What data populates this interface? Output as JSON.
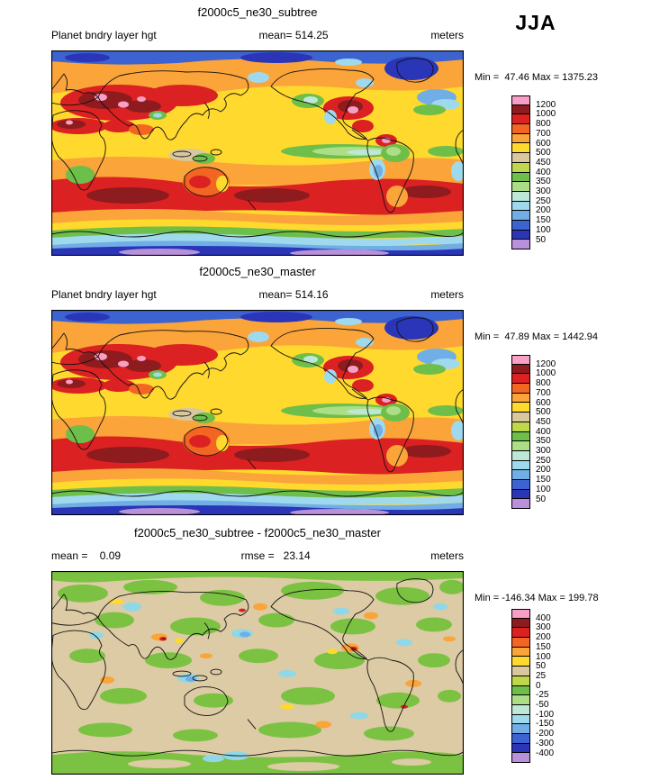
{
  "season": "JJA",
  "panels": [
    {
      "title": "f2000c5_ne30_subtree",
      "left_label": "Planet bndry layer hgt",
      "center_label": "mean= 514.25",
      "right_label": "meters",
      "minmax": "Min =  47.46 Max = 1375.23"
    },
    {
      "title": "f2000c5_ne30_master",
      "left_label": "Planet bndry layer hgt",
      "center_label": "mean= 514.16",
      "right_label": "meters",
      "minmax": "Min =  47.89 Max = 1442.94"
    },
    {
      "title": "f2000c5_ne30_subtree - f2000c5_ne30_master",
      "left_label": "mean =    0.09",
      "center_label": "rmse =   23.14",
      "right_label": "meters",
      "minmax": "Min = -146.34 Max = 199.78"
    }
  ],
  "palette": [
    "#F79FC5",
    "#8E1B1E",
    "#DB2122",
    "#F26522",
    "#FAA43A",
    "#FFD92E",
    "#D9C79E",
    "#BED74B",
    "#6EBE4A",
    "#ACDE87",
    "#BDE8D8",
    "#9FD9EE",
    "#72AEE6",
    "#3C63CF",
    "#2A35B8",
    "#B991DA"
  ],
  "colorbars": [
    {
      "labels": [
        "1200",
        "1000",
        "800",
        "700",
        "600",
        "500",
        "450",
        "400",
        "350",
        "300",
        "250",
        "200",
        "150",
        "100",
        "50"
      ]
    },
    {
      "labels": [
        "1200",
        "1000",
        "800",
        "700",
        "600",
        "500",
        "450",
        "400",
        "350",
        "300",
        "250",
        "200",
        "150",
        "100",
        "50"
      ]
    },
    {
      "labels": [
        "400",
        "300",
        "200",
        "150",
        "100",
        "50",
        "25",
        "0",
        "-25",
        "-50",
        "-100",
        "-150",
        "-200",
        "-300",
        "-400"
      ]
    }
  ],
  "chart_data": [
    {
      "type": "heatmap",
      "subtype": "global-contour-map",
      "title": "f2000c5_ne30_subtree",
      "variable": "Planet bndry layer hgt",
      "season": "JJA",
      "units": "meters",
      "mean": 514.25,
      "min": 47.46,
      "max": 1375.23,
      "contour_levels": [
        50,
        100,
        150,
        200,
        250,
        300,
        350,
        400,
        450,
        500,
        600,
        700,
        800,
        1000,
        1200
      ],
      "legend_position": "right"
    },
    {
      "type": "heatmap",
      "subtype": "global-contour-map",
      "title": "f2000c5_ne30_master",
      "variable": "Planet bndry layer hgt",
      "season": "JJA",
      "units": "meters",
      "mean": 514.16,
      "min": 47.89,
      "max": 1442.94,
      "contour_levels": [
        50,
        100,
        150,
        200,
        250,
        300,
        350,
        400,
        450,
        500,
        600,
        700,
        800,
        1000,
        1200
      ],
      "legend_position": "right"
    },
    {
      "type": "heatmap",
      "subtype": "global-contour-map-difference",
      "title": "f2000c5_ne30_subtree - f2000c5_ne30_master",
      "variable": "Planet bndry layer hgt",
      "season": "JJA",
      "units": "meters",
      "mean": 0.09,
      "rmse": 23.14,
      "min": -146.34,
      "max": 199.78,
      "contour_levels": [
        -400,
        -300,
        -200,
        -150,
        -100,
        -50,
        -25,
        0,
        25,
        50,
        100,
        150,
        200,
        300,
        400
      ],
      "legend_position": "right"
    }
  ]
}
